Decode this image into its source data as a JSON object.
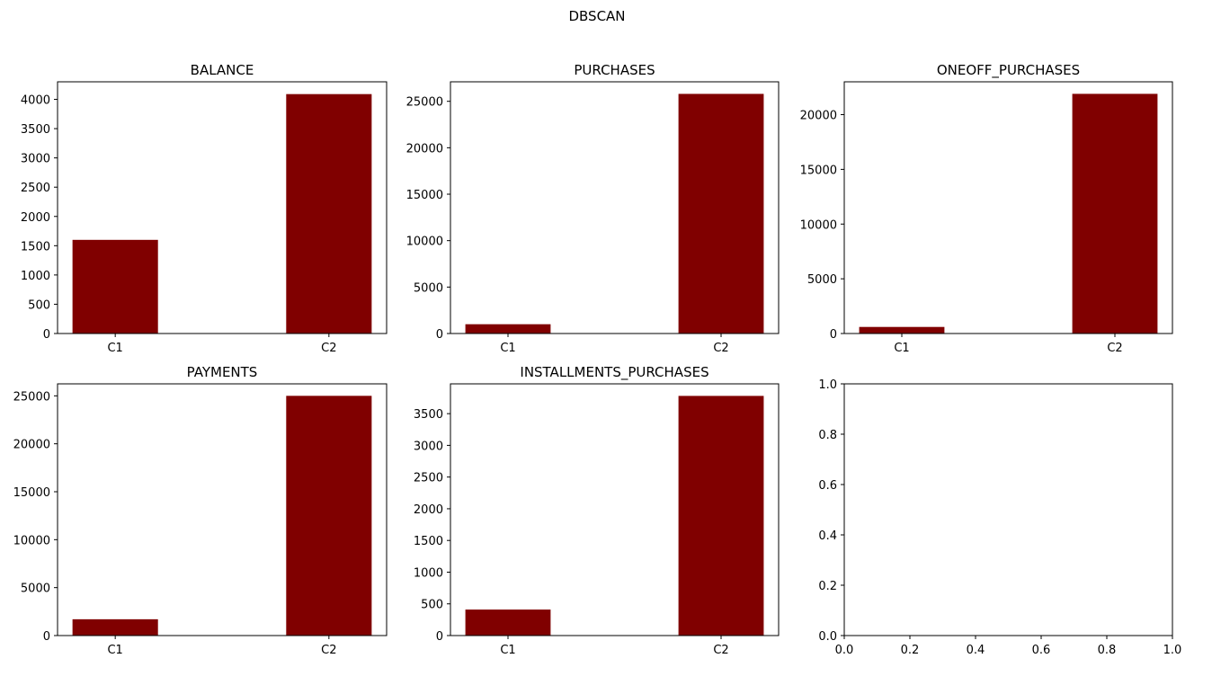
{
  "figure": {
    "suptitle": "DBSCAN",
    "bar_color": "#800000"
  },
  "chart_data": [
    {
      "type": "bar",
      "title": "BALANCE",
      "categories": [
        "C1",
        "C2"
      ],
      "values": [
        1600,
        4090
      ],
      "ylim": [
        0,
        4300
      ],
      "yticks": [
        0,
        500,
        1000,
        1500,
        2000,
        2500,
        3000,
        3500,
        4000
      ]
    },
    {
      "type": "bar",
      "title": "PURCHASES",
      "categories": [
        "C1",
        "C2"
      ],
      "values": [
        1000,
        25800
      ],
      "ylim": [
        0,
        27100
      ],
      "yticks": [
        0,
        5000,
        10000,
        15000,
        20000,
        25000
      ]
    },
    {
      "type": "bar",
      "title": "ONEOFF_PURCHASES",
      "categories": [
        "C1",
        "C2"
      ],
      "values": [
        600,
        21900
      ],
      "ylim": [
        0,
        23000
      ],
      "yticks": [
        0,
        5000,
        10000,
        15000,
        20000
      ]
    },
    {
      "type": "bar",
      "title": "PAYMENTS",
      "categories": [
        "C1",
        "C2"
      ],
      "values": [
        1700,
        25000
      ],
      "ylim": [
        0,
        26250
      ],
      "yticks": [
        0,
        5000,
        10000,
        15000,
        20000,
        25000
      ]
    },
    {
      "type": "bar",
      "title": "INSTALLMENTS_PURCHASES",
      "categories": [
        "C1",
        "C2"
      ],
      "values": [
        410,
        3780
      ],
      "ylim": [
        0,
        3970
      ],
      "yticks": [
        0,
        500,
        1000,
        1500,
        2000,
        2500,
        3000,
        3500
      ]
    },
    {
      "type": "bar",
      "title": "",
      "categories": [],
      "values": [],
      "xlim": [
        0,
        1
      ],
      "ylim": [
        0,
        1
      ],
      "xticks": [
        "0.0",
        "0.2",
        "0.4",
        "0.6",
        "0.8",
        "1.0"
      ],
      "yticks": [
        "0.0",
        "0.2",
        "0.4",
        "0.6",
        "0.8",
        "1.0"
      ]
    }
  ]
}
